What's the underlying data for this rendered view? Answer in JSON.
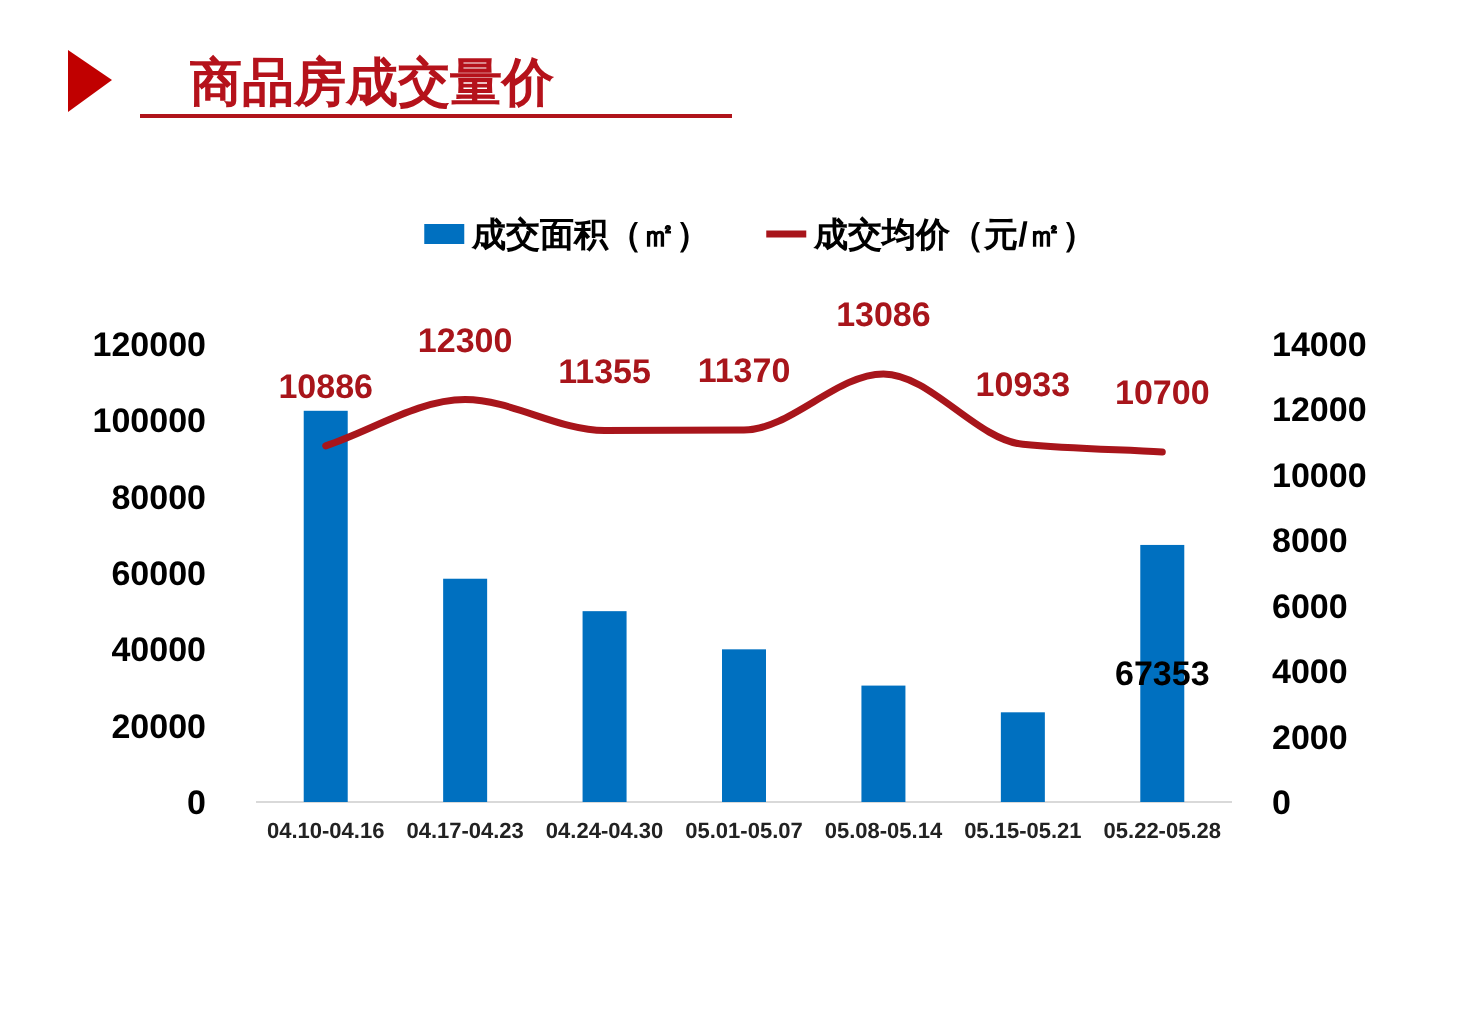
{
  "chart_data": {
    "type": "bar",
    "title": "商品房成交量价",
    "categories": [
      "04.10-04.16",
      "04.17-04.23",
      "04.24-04.30",
      "05.01-05.07",
      "05.08-05.14",
      "05.15-05.21",
      "05.22-05.28"
    ],
    "series": [
      {
        "name": "成交面积（㎡）",
        "color": "#0070c0",
        "values": [
          102500,
          58500,
          50000,
          40000,
          30500,
          23500,
          67353
        ],
        "value_labels": [
          null,
          null,
          null,
          null,
          null,
          null,
          "67353"
        ]
      },
      {
        "name": "成交均价（元/㎡）",
        "type": "line",
        "axis": "y2",
        "color": "#a8151b",
        "values": [
          10886,
          12300,
          11355,
          11370,
          13086,
          10933,
          10700
        ],
        "value_labels": [
          "10886",
          "12300",
          "11355",
          "11370",
          "13086",
          "10933",
          "10700"
        ]
      }
    ],
    "ylim": [
      0,
      120000
    ],
    "yticks": [
      0,
      20000,
      40000,
      60000,
      80000,
      100000,
      120000
    ],
    "y2lim": [
      0,
      14000
    ],
    "y2ticks": [
      0,
      2000,
      4000,
      6000,
      8000,
      10000,
      12000,
      14000
    ],
    "legend": "top",
    "grid": false,
    "marker": "none",
    "line_style": "solid"
  }
}
